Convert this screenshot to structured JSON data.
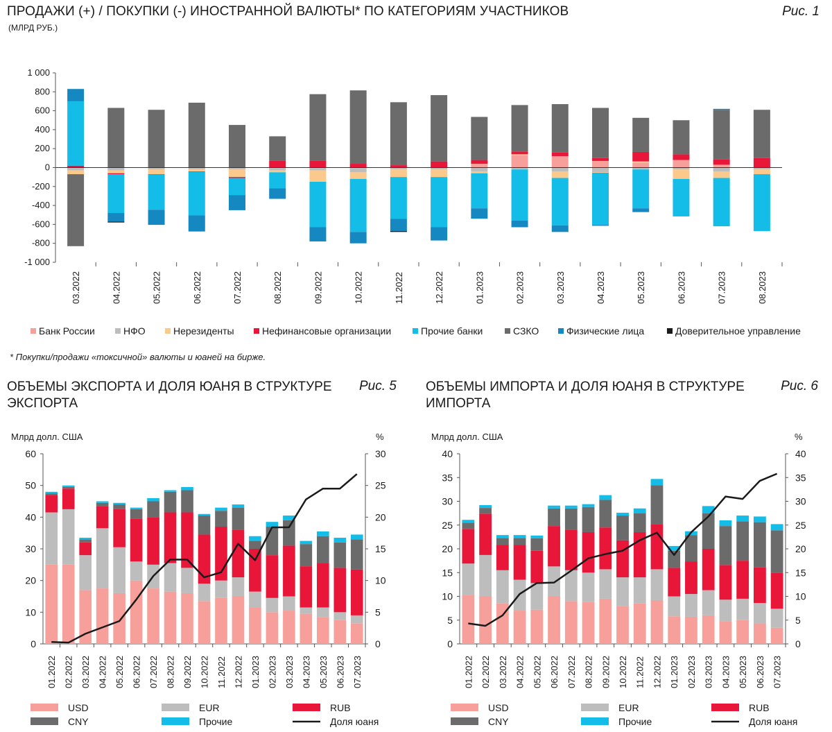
{
  "header": {
    "title": "ПРОДАЖИ (+) / ПОКУПКИ (-) ИНОСТРАННОЙ ВАЛЮТЫ* ПО КАТЕГОРИЯМ УЧАСТНИКОВ",
    "subtitle": "(МЛРД РУБ.)",
    "fig_label": "Рис. 1",
    "note": "* Покупки/продажи «токсичной» валюты и юаней на бирже."
  },
  "fig5": {
    "title": "ОБЪЕМЫ ЭКСПОРТА И ДОЛЯ ЮАНЯ В СТРУКТУРЕ ЭКСПОРТА",
    "fig_label": "Рис. 5",
    "left_unit": "Млрд долл. США",
    "right_unit": "%"
  },
  "fig6": {
    "title": "ОБЪЕМЫ ИМПОРТА И ДОЛЯ ЮАНЯ В СТРУКТУРЕ ИМПОРТА",
    "fig_label": "Рис. 6",
    "left_unit": "Млрд долл. США",
    "right_unit": "%"
  },
  "colors": {
    "bank_russia": "#f7a09b",
    "nfo": "#bdbdbd",
    "nonresidents": "#fcc98d",
    "nonfin": "#e8173a",
    "other_banks": "#13bde8",
    "szko": "#6b6b6b",
    "individuals": "#1588c2",
    "trust": "#1a1a1a",
    "usd": "#f7a09b",
    "eur": "#bdbdbd",
    "rub": "#e8173a",
    "cny": "#6b6b6b",
    "other": "#13bde8",
    "line": "#1a1a1a"
  },
  "chart_data": [
    {
      "type": "bar",
      "stacked": true,
      "title": "ПРОДАЖИ (+) / ПОКУПКИ (-) ИНОСТРАННОЙ ВАЛЮТЫ* ПО КАТЕГОРИЯМ УЧАСТНИКОВ",
      "ylabel": "МЛРД РУБ.",
      "ylim": [
        -1000,
        1000
      ],
      "yticks": [
        1000,
        800,
        600,
        400,
        200,
        0,
        -200,
        -400,
        -600,
        -800,
        -1000
      ],
      "ytick_labels": [
        "1 000",
        "800",
        "600",
        "400",
        "200",
        "0",
        "-200",
        "-400",
        "-600",
        "-800",
        "-1 000"
      ],
      "categories": [
        "03.2022",
        "04.2022",
        "05.2022",
        "06.2022",
        "07.2022",
        "08.2022",
        "09.2022",
        "10.2022",
        "11.2022",
        "12.2022",
        "01.2023",
        "02.2023",
        "03.2023",
        "04.2023",
        "05.2023",
        "06.2023",
        "07.2023",
        "08.2023"
      ],
      "series": [
        {
          "key": "bank_russia",
          "name": "Банк России",
          "values": [
            0,
            0,
            0,
            0,
            0,
            0,
            0,
            0,
            0,
            0,
            40,
            130,
            120,
            70,
            50,
            80,
            30,
            0
          ]
        },
        {
          "key": "nfo",
          "name": "НФО",
          "values": [
            -30,
            -30,
            -20,
            -20,
            -20,
            -30,
            -30,
            -50,
            -20,
            -20,
            -40,
            -20,
            -40,
            -50,
            -20,
            -20,
            -40,
            -20
          ]
        },
        {
          "key": "nonresidents",
          "name": "Нерезиденты",
          "values": [
            -40,
            -30,
            -50,
            -20,
            -80,
            -20,
            -120,
            -70,
            -80,
            -80,
            -20,
            10,
            -70,
            -5,
            15,
            -100,
            -70,
            -50
          ]
        },
        {
          "key": "nonfin",
          "name": "Нефинансовые организации",
          "values": [
            20,
            -10,
            -5,
            -5,
            -10,
            75,
            75,
            40,
            25,
            65,
            40,
            30,
            40,
            30,
            100,
            60,
            55,
            100
          ]
        },
        {
          "key": "other_banks",
          "name": "Прочие банки",
          "values": [
            680,
            -410,
            -370,
            -460,
            -180,
            -170,
            -480,
            -560,
            -440,
            -530,
            -370,
            -540,
            -500,
            -550,
            -410,
            -390,
            -510,
            -600
          ]
        },
        {
          "key": "szko",
          "name": "СЗКО",
          "values": [
            -760,
            630,
            610,
            685,
            450,
            255,
            700,
            775,
            665,
            700,
            455,
            490,
            510,
            530,
            360,
            360,
            525,
            510
          ]
        },
        {
          "key": "individuals",
          "name": "Физические лица",
          "values": [
            130,
            -90,
            -160,
            -170,
            -160,
            -110,
            -150,
            -120,
            -130,
            -140,
            -110,
            -70,
            -70,
            -10,
            -40,
            -5,
            10,
            0
          ]
        },
        {
          "key": "trust",
          "name": "Доверительное управление",
          "values": [
            0,
            -10,
            0,
            0,
            0,
            0,
            0,
            0,
            -10,
            0,
            0,
            0,
            0,
            0,
            0,
            0,
            0,
            0
          ]
        }
      ]
    },
    {
      "type": "bar",
      "stacked": true,
      "title": "ОБЪЕМЫ ЭКСПОРТА И ДОЛЯ ЮАНЯ В СТРУКТУРЕ ЭКСПОРТА",
      "ylabel": "Млрд долл. США",
      "y2label": "%",
      "ylim": [
        0,
        60
      ],
      "yticks": [
        0,
        10,
        20,
        30,
        40,
        50,
        60
      ],
      "y2lim": [
        0,
        30
      ],
      "y2ticks": [
        0,
        5,
        10,
        15,
        20,
        25,
        30
      ],
      "categories": [
        "01.2022",
        "02.2022",
        "03.2022",
        "04.2022",
        "05.2022",
        "06.2022",
        "07.2022",
        "08.2022",
        "09.2022",
        "10.2022",
        "11.2022",
        "12.2022",
        "01.2023",
        "02.2023",
        "03.2023",
        "04.2023",
        "05.2023",
        "06.2023",
        "07.2023"
      ],
      "series": [
        {
          "key": "usd",
          "name": "USD",
          "values": [
            25,
            25,
            17,
            17.5,
            16,
            20,
            17.5,
            16.5,
            16,
            13.5,
            14.5,
            15,
            11.5,
            10,
            10.5,
            9.5,
            8.5,
            7.5,
            6.5
          ]
        },
        {
          "key": "eur",
          "name": "EUR",
          "values": [
            16.5,
            17.5,
            11,
            19,
            14.5,
            6,
            7.5,
            9,
            8,
            5.5,
            5.5,
            6,
            5,
            4.5,
            4.5,
            2,
            3,
            2.5,
            2.5
          ]
        },
        {
          "key": "rub",
          "name": "RUB",
          "values": [
            5.5,
            6.5,
            4,
            7,
            12,
            13.5,
            15,
            16,
            17.5,
            15.5,
            17,
            15,
            13.5,
            13.5,
            16,
            13,
            14,
            14,
            14.5
          ]
        },
        {
          "key": "cny",
          "name": "CNY",
          "values": [
            0.5,
            0.5,
            1,
            1,
            1.5,
            3,
            5,
            6.5,
            7,
            6,
            5,
            7,
            2.5,
            9,
            8,
            7,
            8.5,
            8,
            9.5
          ]
        },
        {
          "key": "other",
          "name": "Прочие",
          "values": [
            0.5,
            0.5,
            0.5,
            0.5,
            0.5,
            0.5,
            1,
            0.5,
            1,
            0.5,
            1,
            1,
            1.5,
            1.5,
            1.5,
            1,
            1.5,
            1.5,
            1.5
          ]
        }
      ],
      "line": {
        "key": "line",
        "name": "Доля юаня",
        "axis": "right",
        "values": [
          0.3,
          0.2,
          1.6,
          2.6,
          3.6,
          7,
          10.7,
          13.3,
          13.3,
          10.5,
          11.3,
          15.8,
          13.2,
          18.4,
          18.4,
          22.8,
          24.5,
          24.5,
          26.8
        ]
      }
    },
    {
      "type": "bar",
      "stacked": true,
      "title": "ОБЪЕМЫ ИМПОРТА И ДОЛЯ ЮАНЯ В СТРУКТУРЕ ИМПОРТА",
      "ylabel": "Млрд долл. США",
      "y2label": "%",
      "ylim": [
        0,
        40
      ],
      "yticks": [
        0,
        5,
        10,
        15,
        20,
        25,
        30,
        35,
        40
      ],
      "y2lim": [
        0,
        40
      ],
      "y2ticks": [
        0,
        5,
        10,
        15,
        20,
        25,
        30,
        35,
        40
      ],
      "categories": [
        "01.2022",
        "02.2022",
        "03.2022",
        "04.2022",
        "05.2022",
        "06.2022",
        "07.2022",
        "08.2022",
        "09.2022",
        "10.2022",
        "11.2022",
        "12.2022",
        "01.2023",
        "02.2023",
        "03.2023",
        "04.2023",
        "05.2023",
        "06.2023",
        "07.2023"
      ],
      "series": [
        {
          "key": "usd",
          "name": "USD",
          "values": [
            10.3,
            10,
            8.5,
            7,
            7.2,
            10,
            9,
            8.8,
            9.5,
            8,
            8.5,
            9.2,
            5.8,
            5.7,
            6,
            4.8,
            5,
            4.3,
            3.4
          ]
        },
        {
          "key": "eur",
          "name": "EUR",
          "values": [
            6.6,
            8.7,
            7,
            6.5,
            5.6,
            6.3,
            6.5,
            6.2,
            6.2,
            6,
            5.5,
            6.5,
            4.2,
            4.8,
            5.3,
            4.5,
            4.5,
            4.3,
            4
          ]
        },
        {
          "key": "rub",
          "name": "RUB",
          "values": [
            7.3,
            8.7,
            5.3,
            7.3,
            6.8,
            8.5,
            8.5,
            8.5,
            8.8,
            7.8,
            9.5,
            9.5,
            6,
            6.8,
            8.7,
            7.3,
            8,
            7.5,
            7.5
          ]
        },
        {
          "key": "cny",
          "name": "CNY",
          "values": [
            1.3,
            1.2,
            1.5,
            1.5,
            2.6,
            3.7,
            4.5,
            5.3,
            5.8,
            5.2,
            4,
            8.2,
            3.6,
            5.6,
            7.5,
            8.2,
            8.3,
            9.5,
            9
          ]
        },
        {
          "key": "other",
          "name": "Прочие",
          "values": [
            0.6,
            0.6,
            0.6,
            0.6,
            0.6,
            0.6,
            0.6,
            0.6,
            1,
            0.6,
            1,
            1.3,
            1,
            0.8,
            1.5,
            1.2,
            1.2,
            1.2,
            1.3
          ]
        }
      ],
      "line": {
        "key": "line",
        "name": "Доля юаня",
        "axis": "right",
        "values": [
          4.3,
          3.8,
          6,
          10.5,
          12.8,
          12.9,
          15.4,
          18,
          18.9,
          19.6,
          21.8,
          23.4,
          18.7,
          23.5,
          26.8,
          31,
          30.5,
          34.3,
          35.8
        ]
      }
    }
  ]
}
